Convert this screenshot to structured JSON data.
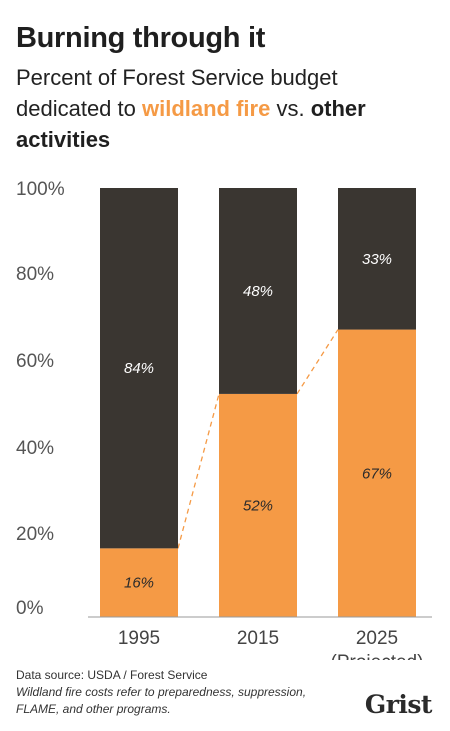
{
  "header": {
    "title": "Burning through it",
    "subtitle_part1": "Percent of Forest Service budget dedicated to ",
    "subtitle_fire": "wildland fire",
    "subtitle_part2": " vs. ",
    "subtitle_other": "other activities"
  },
  "colors": {
    "fire": "#f59a45",
    "other": "#3a3631",
    "connector": "#f59a45"
  },
  "chart_data": {
    "type": "bar",
    "stacked": true,
    "categories": [
      "1995",
      "2015",
      "2025"
    ],
    "category_sublabels": [
      "",
      "",
      "(Projected)"
    ],
    "series": [
      {
        "name": "wildland fire",
        "values": [
          16,
          52,
          67
        ]
      },
      {
        "name": "other activities",
        "values": [
          84,
          48,
          33
        ]
      }
    ],
    "data_labels": [
      [
        "16%",
        "52%",
        "67%"
      ],
      [
        "84%",
        "48%",
        "33%"
      ]
    ],
    "yticks": [
      "0%",
      "20%",
      "40%",
      "60%",
      "80%",
      "100%"
    ],
    "ylim": [
      0,
      100
    ],
    "grid": false,
    "legend": "none"
  },
  "footer": {
    "source": "Data source: USDA / Forest Service",
    "note": "Wildland fire costs refer to preparedness, suppression, FLAME, and other programs.",
    "logo": "Grist"
  }
}
